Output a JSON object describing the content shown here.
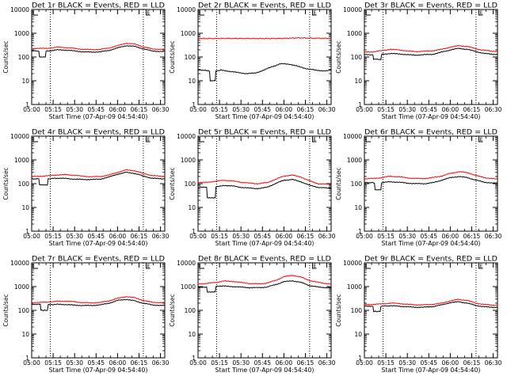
{
  "window": {
    "title": ""
  },
  "chart_data": [
    {
      "type": "line",
      "title": "Det 1r BLACK = Events, RED = LLD",
      "xlabel": "Start Time (07-Apr-09 04:54:40)",
      "ylabel": "Counts/sec",
      "yscale": "log",
      "ylim": [
        1,
        10000
      ],
      "x_ticks": [
        "05:00",
        "05:15",
        "05:30",
        "05:45",
        "06:00",
        "06:15",
        "06:30"
      ],
      "xlim_minutes": [
        300,
        393
      ],
      "y_ticks": [
        "1",
        "10",
        "100",
        "1000",
        "10000"
      ],
      "marks": {
        "dotted_minutes": [
          313,
          378
        ],
        "flag_minute": 380,
        "flag_label": "E"
      },
      "series": [
        {
          "name": "RED",
          "color": "#ff0000",
          "x": [
            300,
            306,
            309,
            312,
            318,
            324,
            330,
            336,
            342,
            348,
            354,
            360,
            366,
            372,
            378,
            384,
            390,
            393
          ],
          "y": [
            230,
            230,
            230,
            235,
            260,
            250,
            230,
            210,
            205,
            210,
            240,
            300,
            380,
            350,
            270,
            220,
            210,
            210
          ]
        },
        {
          "name": "BLACK",
          "color": "#000000",
          "x": [
            300,
            305,
            305.5,
            309.5,
            310,
            312,
            318,
            324,
            330,
            336,
            342,
            348,
            354,
            360,
            366,
            372,
            378,
            384,
            390,
            393
          ],
          "y": [
            180,
            180,
            100,
            100,
            180,
            180,
            200,
            195,
            180,
            165,
            160,
            165,
            190,
            240,
            300,
            280,
            220,
            180,
            170,
            170
          ]
        }
      ]
    },
    {
      "type": "line",
      "title": "Det 2r BLACK = Events, RED = LLD",
      "xlabel": "Start Time (07-Apr-09 04:54:40)",
      "ylabel": "Counts/sec",
      "yscale": "log",
      "ylim": [
        1,
        10000
      ],
      "x_ticks": [
        "05:00",
        "05:15",
        "05:30",
        "05:45",
        "06:00",
        "06:15",
        "06:30"
      ],
      "xlim_minutes": [
        300,
        393
      ],
      "y_ticks": [
        "1",
        "10",
        "100",
        "1000",
        "10000"
      ],
      "marks": {
        "dotted_minutes": [
          313,
          378
        ],
        "flag_minute": 380,
        "flag_label": "E"
      },
      "series": [
        {
          "name": "RED",
          "color": "#ff0000",
          "x": [
            300,
            310,
            320,
            330,
            340,
            350,
            360,
            370,
            380,
            393
          ],
          "y": [
            600,
            600,
            610,
            605,
            600,
            600,
            610,
            640,
            620,
            610
          ]
        },
        {
          "name": "BLACK",
          "color": "#000000",
          "x": [
            300,
            305,
            308,
            308.5,
            312,
            312.5,
            316,
            322,
            328,
            334,
            340,
            346,
            352,
            358,
            364,
            370,
            376,
            382,
            388,
            393
          ],
          "y": [
            28,
            28,
            26,
            10,
            10,
            26,
            28,
            25,
            22,
            20,
            21,
            28,
            40,
            52,
            50,
            40,
            32,
            28,
            26,
            28
          ]
        }
      ]
    },
    {
      "type": "line",
      "title": "Det 3r BLACK = Events, RED = LLD",
      "xlabel": "Start Time (07-Apr-09 04:54:40)",
      "ylabel": "Counts/sec",
      "yscale": "log",
      "ylim": [
        1,
        10000
      ],
      "x_ticks": [
        "05:00",
        "05:15",
        "05:30",
        "05:45",
        "06:00",
        "06:15",
        "06:30"
      ],
      "xlim_minutes": [
        300,
        393
      ],
      "y_ticks": [
        "1",
        "10",
        "100",
        "1000",
        "10000"
      ],
      "marks": {
        "dotted_minutes": [
          313,
          378
        ],
        "flag_minute": 380,
        "flag_label": "E"
      },
      "series": [
        {
          "name": "RED",
          "color": "#ff0000",
          "x": [
            300,
            306,
            312,
            318,
            324,
            330,
            336,
            342,
            348,
            354,
            360,
            366,
            372,
            378,
            384,
            390,
            393
          ],
          "y": [
            160,
            165,
            185,
            210,
            200,
            180,
            170,
            175,
            185,
            210,
            260,
            300,
            280,
            220,
            190,
            175,
            175
          ]
        },
        {
          "name": "BLACK",
          "color": "#000000",
          "x": [
            300,
            306,
            306.5,
            311.5,
            312,
            318,
            324,
            330,
            336,
            342,
            348,
            354,
            360,
            366,
            372,
            378,
            384,
            390,
            393
          ],
          "y": [
            125,
            125,
            80,
            80,
            130,
            140,
            135,
            125,
            120,
            125,
            130,
            160,
            200,
            230,
            210,
            170,
            140,
            130,
            130
          ]
        }
      ]
    },
    {
      "type": "line",
      "title": "Det 4r BLACK = Events, RED = LLD",
      "xlabel": "Start Time (07-Apr-09 04:54:40)",
      "ylabel": "Counts/sec",
      "yscale": "log",
      "ylim": [
        1,
        10000
      ],
      "x_ticks": [
        "05:00",
        "05:15",
        "05:30",
        "05:45",
        "06:00",
        "06:15",
        "06:30"
      ],
      "xlim_minutes": [
        300,
        393
      ],
      "y_ticks": [
        "1",
        "10",
        "100",
        "1000",
        "10000"
      ],
      "marks": {
        "dotted_minutes": [
          313,
          378
        ],
        "flag_minute": 380,
        "flag_label": "E"
      },
      "series": [
        {
          "name": "RED",
          "color": "#ff0000",
          "x": [
            300,
            306,
            312,
            318,
            324,
            330,
            336,
            342,
            348,
            354,
            360,
            366,
            372,
            378,
            384,
            390,
            393
          ],
          "y": [
            200,
            205,
            215,
            235,
            240,
            225,
            205,
            195,
            200,
            230,
            300,
            380,
            350,
            270,
            220,
            205,
            205
          ]
        },
        {
          "name": "BLACK",
          "color": "#000000",
          "x": [
            300,
            305,
            305.5,
            311,
            311.5,
            318,
            324,
            330,
            336,
            342,
            348,
            354,
            360,
            366,
            372,
            378,
            384,
            390,
            393
          ],
          "y": [
            160,
            160,
            90,
            90,
            160,
            170,
            165,
            155,
            150,
            150,
            155,
            190,
            250,
            300,
            270,
            210,
            170,
            160,
            160
          ]
        }
      ]
    },
    {
      "type": "line",
      "title": "Det 5r BLACK = Events, RED = LLD",
      "xlabel": "Start Time (07-Apr-09 04:54:40)",
      "ylabel": "Counts/sec",
      "yscale": "log",
      "ylim": [
        1,
        10000
      ],
      "x_ticks": [
        "05:00",
        "05:15",
        "05:30",
        "05:45",
        "06:00",
        "06:15",
        "06:30"
      ],
      "xlim_minutes": [
        300,
        393
      ],
      "y_ticks": [
        "1",
        "10",
        "100",
        "1000",
        "10000"
      ],
      "marks": {
        "dotted_minutes": [
          313,
          378
        ],
        "flag_minute": 380,
        "flag_label": "E"
      },
      "series": [
        {
          "name": "RED",
          "color": "#ff0000",
          "x": [
            300,
            306,
            312,
            318,
            324,
            330,
            336,
            342,
            348,
            354,
            360,
            366,
            372,
            378,
            384,
            390,
            393
          ],
          "y": [
            110,
            115,
            125,
            140,
            130,
            115,
            105,
            100,
            110,
            150,
            210,
            230,
            190,
            130,
            100,
            95,
            95
          ]
        },
        {
          "name": "BLACK",
          "color": "#000000",
          "x": [
            300,
            306,
            306.5,
            312,
            312.5,
            318,
            324,
            330,
            336,
            342,
            348,
            354,
            360,
            366,
            372,
            378,
            384,
            390,
            393
          ],
          "y": [
            70,
            70,
            25,
            25,
            75,
            85,
            80,
            70,
            65,
            62,
            70,
            100,
            140,
            150,
            120,
            85,
            70,
            65,
            65
          ]
        }
      ]
    },
    {
      "type": "line",
      "title": "Det 6r BLACK = Events, RED = LLD",
      "xlabel": "Start Time (07-Apr-09 04:54:40)",
      "ylabel": "Counts/sec",
      "yscale": "log",
      "ylim": [
        1,
        10000
      ],
      "x_ticks": [
        "05:00",
        "05:15",
        "05:30",
        "05:45",
        "06:00",
        "06:15",
        "06:30"
      ],
      "xlim_minutes": [
        300,
        393
      ],
      "y_ticks": [
        "1",
        "10",
        "100",
        "1000",
        "10000"
      ],
      "marks": {
        "dotted_minutes": [
          313,
          378
        ],
        "flag_minute": 380,
        "flag_label": "E"
      },
      "series": [
        {
          "name": "RED",
          "color": "#ff0000",
          "x": [
            300,
            306,
            312,
            318,
            324,
            330,
            336,
            342,
            348,
            354,
            360,
            366,
            372,
            378,
            384,
            390,
            393
          ],
          "y": [
            160,
            165,
            180,
            205,
            195,
            175,
            165,
            165,
            180,
            210,
            270,
            320,
            290,
            220,
            180,
            160,
            155
          ]
        },
        {
          "name": "BLACK",
          "color": "#000000",
          "x": [
            300,
            307,
            307.5,
            311.5,
            312,
            318,
            324,
            330,
            336,
            342,
            348,
            354,
            360,
            366,
            372,
            378,
            384,
            390,
            393
          ],
          "y": [
            110,
            110,
            55,
            55,
            110,
            120,
            115,
            105,
            100,
            100,
            110,
            140,
            180,
            200,
            180,
            140,
            115,
            105,
            105
          ]
        }
      ]
    },
    {
      "type": "line",
      "title": "Det 7r BLACK = Events, RED = LLD",
      "xlabel": "Start Time (07-Apr-09 04:54:40)",
      "ylabel": "Counts/sec",
      "yscale": "log",
      "ylim": [
        1,
        10000
      ],
      "x_ticks": [
        "05:00",
        "05:15",
        "05:30",
        "05:45",
        "06:00",
        "06:15",
        "06:30"
      ],
      "xlim_minutes": [
        300,
        393
      ],
      "y_ticks": [
        "1",
        "10",
        "100",
        "1000",
        "10000"
      ],
      "marks": {
        "dotted_minutes": [
          313,
          378
        ],
        "flag_minute": 380,
        "flag_label": "E"
      },
      "series": [
        {
          "name": "RED",
          "color": "#ff0000",
          "x": [
            300,
            306,
            312,
            318,
            324,
            330,
            336,
            342,
            348,
            354,
            360,
            366,
            372,
            378,
            384,
            390,
            393
          ],
          "y": [
            210,
            215,
            225,
            240,
            245,
            230,
            210,
            205,
            215,
            250,
            320,
            380,
            340,
            260,
            220,
            210,
            210
          ]
        },
        {
          "name": "BLACK",
          "color": "#000000",
          "x": [
            300,
            306,
            306.5,
            311,
            311.5,
            318,
            324,
            330,
            336,
            342,
            348,
            354,
            360,
            366,
            372,
            378,
            384,
            390,
            393
          ],
          "y": [
            180,
            180,
            100,
            100,
            170,
            180,
            175,
            165,
            160,
            160,
            170,
            200,
            260,
            290,
            250,
            200,
            170,
            160,
            160
          ]
        }
      ]
    },
    {
      "type": "line",
      "title": "Det 8r BLACK = Events, RED = LLD",
      "xlabel": "Start Time (07-Apr-09 04:54:40)",
      "ylabel": "Counts/sec",
      "yscale": "log",
      "ylim": [
        1,
        10000
      ],
      "x_ticks": [
        "05:00",
        "05:15",
        "05:30",
        "05:45",
        "06:00",
        "06:15",
        "06:30"
      ],
      "xlim_minutes": [
        300,
        393
      ],
      "y_ticks": [
        "1",
        "10",
        "100",
        "1000",
        "10000"
      ],
      "marks": {
        "dotted_minutes": [
          313,
          378
        ],
        "flag_minute": 380,
        "flag_label": "E"
      },
      "series": [
        {
          "name": "RED",
          "color": "#ff0000",
          "x": [
            300,
            306,
            312,
            318,
            324,
            330,
            336,
            342,
            348,
            354,
            360,
            366,
            372,
            378,
            384,
            390,
            393
          ],
          "y": [
            1300,
            1350,
            1500,
            1700,
            1650,
            1500,
            1350,
            1300,
            1400,
            1800,
            2600,
            3000,
            2500,
            1800,
            1500,
            1350,
            1300
          ]
        },
        {
          "name": "BLACK",
          "color": "#000000",
          "x": [
            300,
            306,
            306.5,
            312,
            312.5,
            318,
            324,
            330,
            336,
            342,
            348,
            354,
            360,
            366,
            372,
            378,
            384,
            390,
            393
          ],
          "y": [
            950,
            950,
            600,
            600,
            1000,
            1050,
            1000,
            950,
            900,
            900,
            950,
            1200,
            1600,
            1750,
            1500,
            1100,
            950,
            900,
            900
          ]
        }
      ]
    },
    {
      "type": "line",
      "title": "Det 9r BLACK = Events, RED = LLD",
      "xlabel": "Start Time (07-Apr-09 04:54:40)",
      "ylabel": "Counts/sec",
      "yscale": "log",
      "ylim": [
        1,
        10000
      ],
      "x_ticks": [
        "05:00",
        "05:15",
        "05:30",
        "05:45",
        "06:00",
        "06:15",
        "06:30"
      ],
      "xlim_minutes": [
        300,
        393
      ],
      "y_ticks": [
        "1",
        "10",
        "100",
        "1000",
        "10000"
      ],
      "marks": {
        "dotted_minutes": [
          313,
          378
        ],
        "flag_minute": 380,
        "flag_label": "E"
      },
      "series": [
        {
          "name": "RED",
          "color": "#ff0000",
          "x": [
            300,
            306,
            312,
            318,
            324,
            330,
            336,
            342,
            348,
            354,
            360,
            366,
            372,
            378,
            384,
            390,
            393
          ],
          "y": [
            175,
            178,
            185,
            200,
            195,
            180,
            170,
            170,
            180,
            200,
            250,
            290,
            260,
            200,
            175,
            165,
            165
          ]
        },
        {
          "name": "BLACK",
          "color": "#000000",
          "x": [
            300,
            306,
            306.5,
            311,
            311.5,
            318,
            324,
            330,
            336,
            342,
            348,
            354,
            360,
            366,
            372,
            378,
            384,
            390,
            393
          ],
          "y": [
            150,
            150,
            90,
            90,
            150,
            155,
            150,
            140,
            135,
            135,
            145,
            170,
            210,
            230,
            200,
            160,
            140,
            135,
            135
          ]
        }
      ]
    }
  ]
}
